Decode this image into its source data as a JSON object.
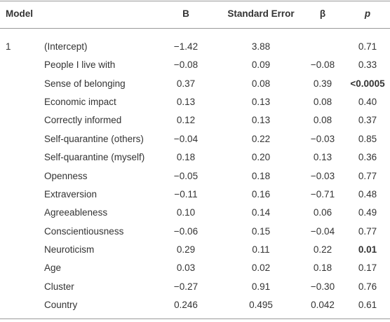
{
  "table": {
    "header": {
      "model": "Model",
      "b": "B",
      "se": "Standard Error",
      "beta": "β",
      "p": "p"
    },
    "model": "1",
    "rows": [
      {
        "term": "(Intercept)",
        "b": "−1.42",
        "se": "3.88",
        "p": "0.71"
      },
      {
        "term": "People I live with",
        "b": "−0.08",
        "se": "0.09",
        "beta": "−0.08",
        "p": "0.33"
      },
      {
        "term": "Sense of belonging",
        "b": "0.37",
        "se": "0.08",
        "beta": "0.39",
        "p": "<0.0005"
      },
      {
        "term": "Economic impact",
        "b": "0.13",
        "se": "0.13",
        "beta": "0.08",
        "p": "0.40"
      },
      {
        "term": "Correctly informed",
        "b": "0.12",
        "se": "0.13",
        "beta": "0.08",
        "p": "0.37"
      },
      {
        "term": "Self-quarantine (others)",
        "b": "−0.04",
        "se": "0.22",
        "beta": "−0.03",
        "p": "0.85"
      },
      {
        "term": "Self-quarantine (myself)",
        "b": "0.18",
        "se": "0.20",
        "beta": "0.13",
        "p": "0.36"
      },
      {
        "term": "Openness",
        "b": "−0.05",
        "se": "0.18",
        "beta": "−0.03",
        "p": "0.77"
      },
      {
        "term": "Extraversion",
        "b": "−0.11",
        "se": "0.16",
        "beta": "−0.71",
        "p": "0.48"
      },
      {
        "term": "Agreeableness",
        "b": "0.10",
        "se": "0.14",
        "beta": "0.06",
        "p": "0.49"
      },
      {
        "term": "Conscientiousness",
        "b": "−0.06",
        "se": "0.15",
        "beta": "−0.04",
        "p": "0.77"
      },
      {
        "term": "Neuroticism",
        "b": "0.29",
        "se": "0.11",
        "beta": "0.22",
        "p": "0.01"
      },
      {
        "term": "Age",
        "b": "0.03",
        "se": "0.02",
        "beta": "0.18",
        "p": "0.17"
      },
      {
        "term": "Cluster",
        "b": "−0.27",
        "se": "0.91",
        "beta": "−0.30",
        "p": "0.76"
      },
      {
        "term": "Country",
        "b": "0.246",
        "se": "0.495",
        "beta": "0.042",
        "p": "0.61"
      }
    ]
  }
}
